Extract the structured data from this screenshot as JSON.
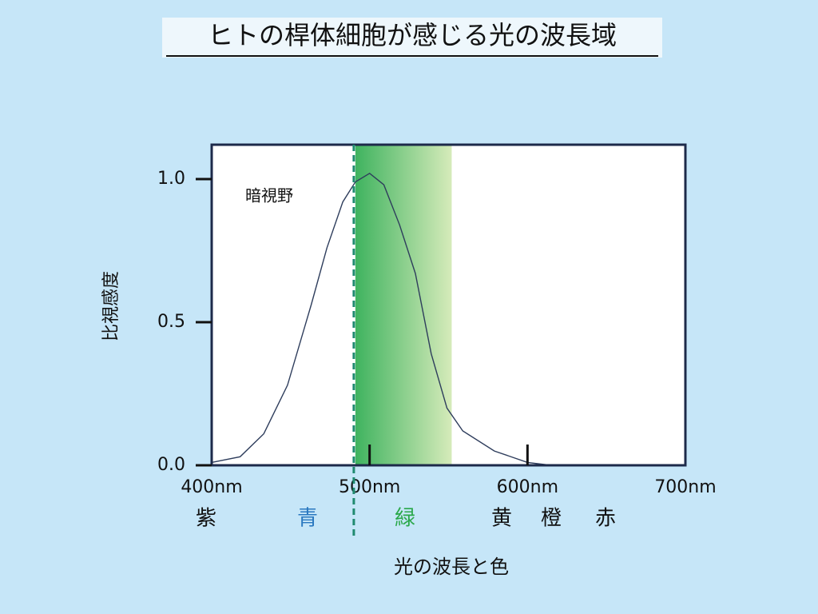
{
  "chart_data": {
    "type": "line",
    "title": "ヒトの桿体細胞が感じる光の波長域",
    "y_label": "比視感度",
    "x_label": "光の波長と色",
    "x": [
      400,
      418,
      433,
      448,
      463,
      473,
      483,
      491,
      500,
      509,
      519,
      529,
      539,
      549,
      559,
      579,
      600,
      615
    ],
    "series": [
      {
        "name": "暗視野",
        "color": "#2e3d5c",
        "values": [
          0.01,
          0.03,
          0.11,
          0.28,
          0.56,
          0.76,
          0.92,
          0.99,
          1.02,
          0.98,
          0.84,
          0.67,
          0.39,
          0.2,
          0.12,
          0.05,
          0.01,
          0.0
        ]
      }
    ],
    "xlim": [
      400,
      700
    ],
    "ylim": [
      0,
      1.12
    ],
    "xticks": [
      {
        "value": 400,
        "label": "400nm"
      },
      {
        "value": 500,
        "label": "500nm"
      },
      {
        "value": 600,
        "label": "600nm"
      },
      {
        "value": 700,
        "label": "700nm"
      }
    ],
    "yticks": [
      {
        "value": 0,
        "label": "0.0"
      },
      {
        "value": 0.5,
        "label": "0.5"
      },
      {
        "value": 1,
        "label": "1.0"
      }
    ],
    "highlight_range": [
      491,
      552
    ],
    "marker_x": 490,
    "color_names": [
      "紫",
      "青",
      "緑",
      "黄",
      "橙",
      "赤"
    ],
    "color_name_colors": [
      "#111111",
      "#2a78c0",
      "#2aa84a",
      "#111111",
      "#111111",
      "#111111"
    ]
  }
}
